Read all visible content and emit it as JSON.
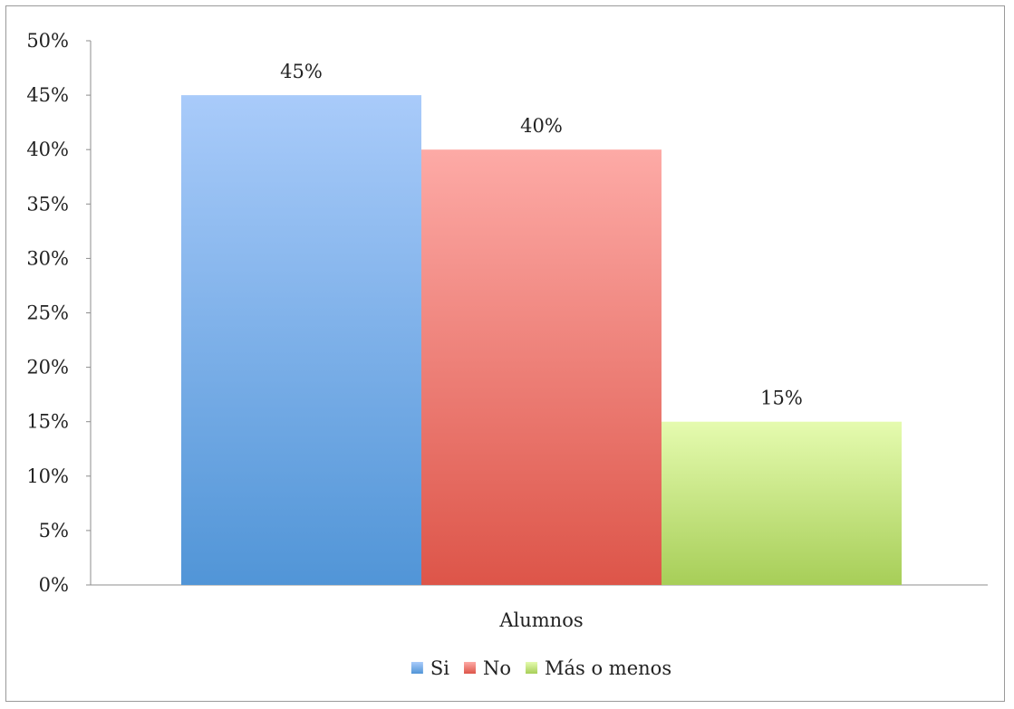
{
  "chart_data": {
    "type": "bar",
    "categories": [
      "Alumnos"
    ],
    "series": [
      {
        "name": "Si",
        "values": [
          45
        ],
        "color": "#5b9bd5"
      },
      {
        "name": "No",
        "values": [
          40
        ],
        "color": "#e15a52"
      },
      {
        "name": "Más o menos",
        "values": [
          15
        ],
        "color": "#a9cf5a"
      }
    ],
    "data_labels": [
      "45%",
      "40%",
      "15%"
    ],
    "y_ticks": [
      "0%",
      "5%",
      "10%",
      "15%",
      "20%",
      "25%",
      "30%",
      "35%",
      "40%",
      "45%",
      "50%"
    ],
    "ylim": [
      0,
      50
    ],
    "ystep": 5,
    "grid": false,
    "legend_position": "bottom"
  }
}
